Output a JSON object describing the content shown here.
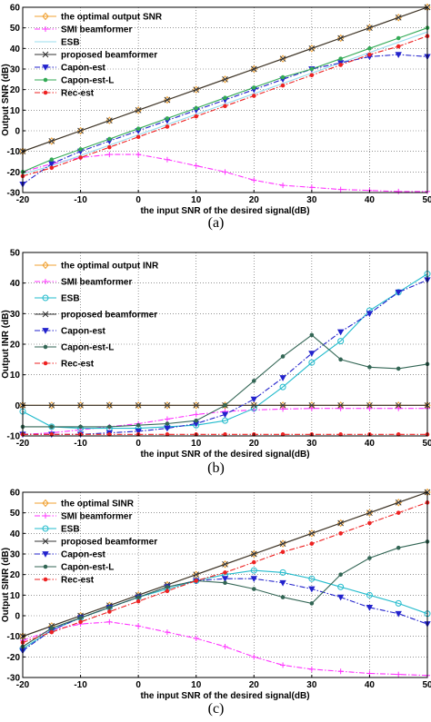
{
  "chart_data": [
    {
      "type": "line",
      "caption": "(a)",
      "xlabel": "the input SNR of the desired signal(dB)",
      "ylabel": "Output SNR (dB)",
      "xlim": [
        -20,
        50
      ],
      "ylim": [
        -30,
        60
      ],
      "xticks": [
        -20,
        -10,
        0,
        10,
        20,
        30,
        40,
        50
      ],
      "yticks": [
        -30,
        -20,
        -10,
        0,
        10,
        20,
        30,
        40,
        50,
        60
      ],
      "grid": true,
      "legend_position": "top-left",
      "x": [
        -20,
        -15,
        -10,
        -5,
        0,
        5,
        10,
        15,
        20,
        25,
        30,
        35,
        40,
        45,
        50
      ],
      "series": [
        {
          "name": "the optimal output SNR",
          "color": "#f0a030",
          "marker": "diamond-open",
          "dash": "solid",
          "values": [
            -10,
            -5,
            0,
            5,
            10,
            15,
            20,
            25,
            30,
            35,
            40,
            45,
            50,
            55,
            60
          ]
        },
        {
          "name": "SMI beamformer",
          "color": "#ff33ff",
          "marker": "plus",
          "dash": "dashdot",
          "values": [
            -20,
            -16,
            -13,
            -11.5,
            -11.5,
            -14,
            -17,
            -20,
            -24,
            -26.5,
            -27.5,
            -28.5,
            -29,
            -29.5,
            -29.5
          ]
        },
        {
          "name": "ESB",
          "color": "#99ddee",
          "marker": "none",
          "dash": "solid",
          "values": [
            -21,
            -17,
            -12,
            -7,
            -2,
            3,
            8,
            13,
            18,
            23,
            28,
            33,
            38,
            43,
            48
          ]
        },
        {
          "name": "proposed beamformer",
          "color": "#333333",
          "marker": "x",
          "dash": "solid",
          "values": [
            -10,
            -5,
            0,
            5,
            10,
            15,
            20,
            25,
            30,
            35,
            40,
            45,
            50,
            55,
            60
          ]
        },
        {
          "name": "Capon-est",
          "color": "#2222cc",
          "marker": "triangle-down",
          "dash": "dashdot",
          "values": [
            -26,
            -16,
            -10,
            -5,
            0,
            5,
            10,
            15,
            20,
            25,
            30,
            33,
            36,
            37,
            36
          ]
        },
        {
          "name": "Capon-est-L",
          "color": "#33aa55",
          "marker": "dot",
          "dash": "solid",
          "values": [
            -20,
            -14,
            -9,
            -4,
            1,
            6,
            11,
            16,
            21,
            26,
            30,
            35,
            40,
            45,
            50
          ]
        },
        {
          "name": "Rec-est",
          "color": "#ee2222",
          "marker": "dot",
          "dash": "dashdot",
          "values": [
            -22,
            -18,
            -13,
            -8,
            -3,
            2,
            7,
            12,
            17,
            22,
            27,
            32,
            37,
            41,
            46
          ]
        }
      ]
    },
    {
      "type": "line",
      "caption": "(b)",
      "xlabel": "the input SNR of the desired signal(dB)",
      "ylabel": "Output INR (dB)",
      "xlim": [
        -20,
        50
      ],
      "ylim": [
        -10,
        50
      ],
      "xticks": [
        -20,
        -10,
        0,
        10,
        20,
        30,
        40,
        50
      ],
      "yticks": [
        -10,
        0,
        10,
        20,
        30,
        40,
        50
      ],
      "grid": true,
      "legend_position": "top-left",
      "x": [
        -20,
        -15,
        -10,
        -5,
        0,
        5,
        10,
        15,
        20,
        25,
        30,
        35,
        40,
        45,
        50
      ],
      "series": [
        {
          "name": "the optimal output INR",
          "color": "#f0a030",
          "marker": "diamond-open",
          "dash": "solid",
          "values": [
            0,
            0,
            0,
            0,
            0,
            0,
            0,
            0,
            0,
            0,
            0,
            0,
            0,
            0,
            0
          ]
        },
        {
          "name": "SMI beamformer",
          "color": "#ff33ff",
          "marker": "plus",
          "dash": "dashdot",
          "values": [
            -9.5,
            -9,
            -8,
            -7,
            -6,
            -4.5,
            -3,
            -2,
            -1.5,
            -1.2,
            -1,
            -1,
            -1,
            -1,
            -1
          ]
        },
        {
          "name": "ESB",
          "color": "#22bbcc",
          "marker": "circle-open",
          "dash": "solid",
          "values": [
            -2,
            -7,
            -7.5,
            -7.5,
            -7.5,
            -7,
            -6.5,
            -5,
            -1,
            6,
            14,
            21,
            31,
            37,
            43
          ]
        },
        {
          "name": "proposed beamformer",
          "color": "#333333",
          "marker": "x",
          "dash": "solid",
          "values": [
            0,
            0,
            0,
            0,
            0,
            0,
            0,
            0,
            0,
            0,
            0,
            0,
            0,
            0,
            0
          ]
        },
        {
          "name": "Capon-est",
          "color": "#2222cc",
          "marker": "triangle-down",
          "dash": "dashdot",
          "values": [
            -9.5,
            -9.5,
            -9.5,
            -9,
            -8.5,
            -7.5,
            -6,
            -3,
            2,
            9,
            17,
            24,
            30,
            37,
            41
          ]
        },
        {
          "name": "Capon-est-L",
          "color": "#336655",
          "marker": "dot",
          "dash": "solid",
          "values": [
            -7,
            -7,
            -7,
            -7,
            -6.5,
            -6,
            -5,
            0,
            8,
            16,
            23,
            15,
            12.5,
            12,
            13.5
          ]
        },
        {
          "name": "Rec-est",
          "color": "#ee2222",
          "marker": "dot",
          "dash": "dashdot",
          "values": [
            -9.5,
            -9.5,
            -9.5,
            -9.5,
            -9.5,
            -9.5,
            -9.5,
            -9.5,
            -9.5,
            -9.5,
            -9.5,
            -9.5,
            -9.5,
            -9.5,
            -9.5
          ]
        }
      ]
    },
    {
      "type": "line",
      "caption": "(c)",
      "xlabel": "the input SNR of the desired signal(dB)",
      "ylabel": "Output SINR (dB)",
      "xlim": [
        -20,
        50
      ],
      "ylim": [
        -30,
        60
      ],
      "xticks": [
        -20,
        -10,
        0,
        10,
        20,
        30,
        40,
        50
      ],
      "yticks": [
        -30,
        -20,
        -10,
        0,
        10,
        20,
        30,
        40,
        50,
        60
      ],
      "grid": true,
      "legend_position": "top-left",
      "x": [
        -20,
        -15,
        -10,
        -5,
        0,
        5,
        10,
        15,
        20,
        25,
        30,
        35,
        40,
        45,
        50
      ],
      "series": [
        {
          "name": "the optimal SINR",
          "color": "#f0a030",
          "marker": "diamond-open",
          "dash": "solid",
          "values": [
            -10,
            -5,
            0,
            5,
            10,
            15,
            20,
            25,
            30,
            35,
            40,
            45,
            50,
            55,
            60
          ]
        },
        {
          "name": "SMI beamformer",
          "color": "#ff33ff",
          "marker": "plus",
          "dash": "dashdot",
          "values": [
            -12,
            -7,
            -4,
            -3,
            -5,
            -8,
            -11,
            -15,
            -20,
            -24,
            -26,
            -27,
            -28,
            -28.5,
            -29
          ]
        },
        {
          "name": "ESB",
          "color": "#22bbcc",
          "marker": "circle-open",
          "dash": "solid",
          "values": [
            -16,
            -7,
            -1,
            4,
            9,
            13,
            17,
            20,
            22,
            21,
            18,
            14,
            10,
            6,
            1
          ]
        },
        {
          "name": "proposed beamformer",
          "color": "#333333",
          "marker": "x",
          "dash": "solid",
          "values": [
            -10,
            -5,
            0,
            5,
            10,
            15,
            20,
            25,
            30,
            35,
            40,
            45,
            50,
            55,
            60
          ]
        },
        {
          "name": "Capon-est",
          "color": "#2222cc",
          "marker": "triangle-down",
          "dash": "dashdot",
          "values": [
            -17,
            -7,
            -1,
            4,
            9,
            14,
            17,
            18,
            18,
            16,
            13,
            9,
            4,
            1,
            -4
          ]
        },
        {
          "name": "Capon-est-L",
          "color": "#336655",
          "marker": "dot",
          "dash": "solid",
          "values": [
            -15,
            -6,
            -1,
            4,
            9,
            14,
            17,
            16,
            13,
            9,
            6,
            20,
            28,
            33,
            36
          ]
        },
        {
          "name": "Rec-est",
          "color": "#ee2222",
          "marker": "dot",
          "dash": "dashdot",
          "values": [
            -13,
            -8,
            -3,
            2,
            7,
            12,
            17,
            21,
            26,
            31,
            35,
            40,
            45,
            50,
            55
          ]
        }
      ]
    }
  ]
}
